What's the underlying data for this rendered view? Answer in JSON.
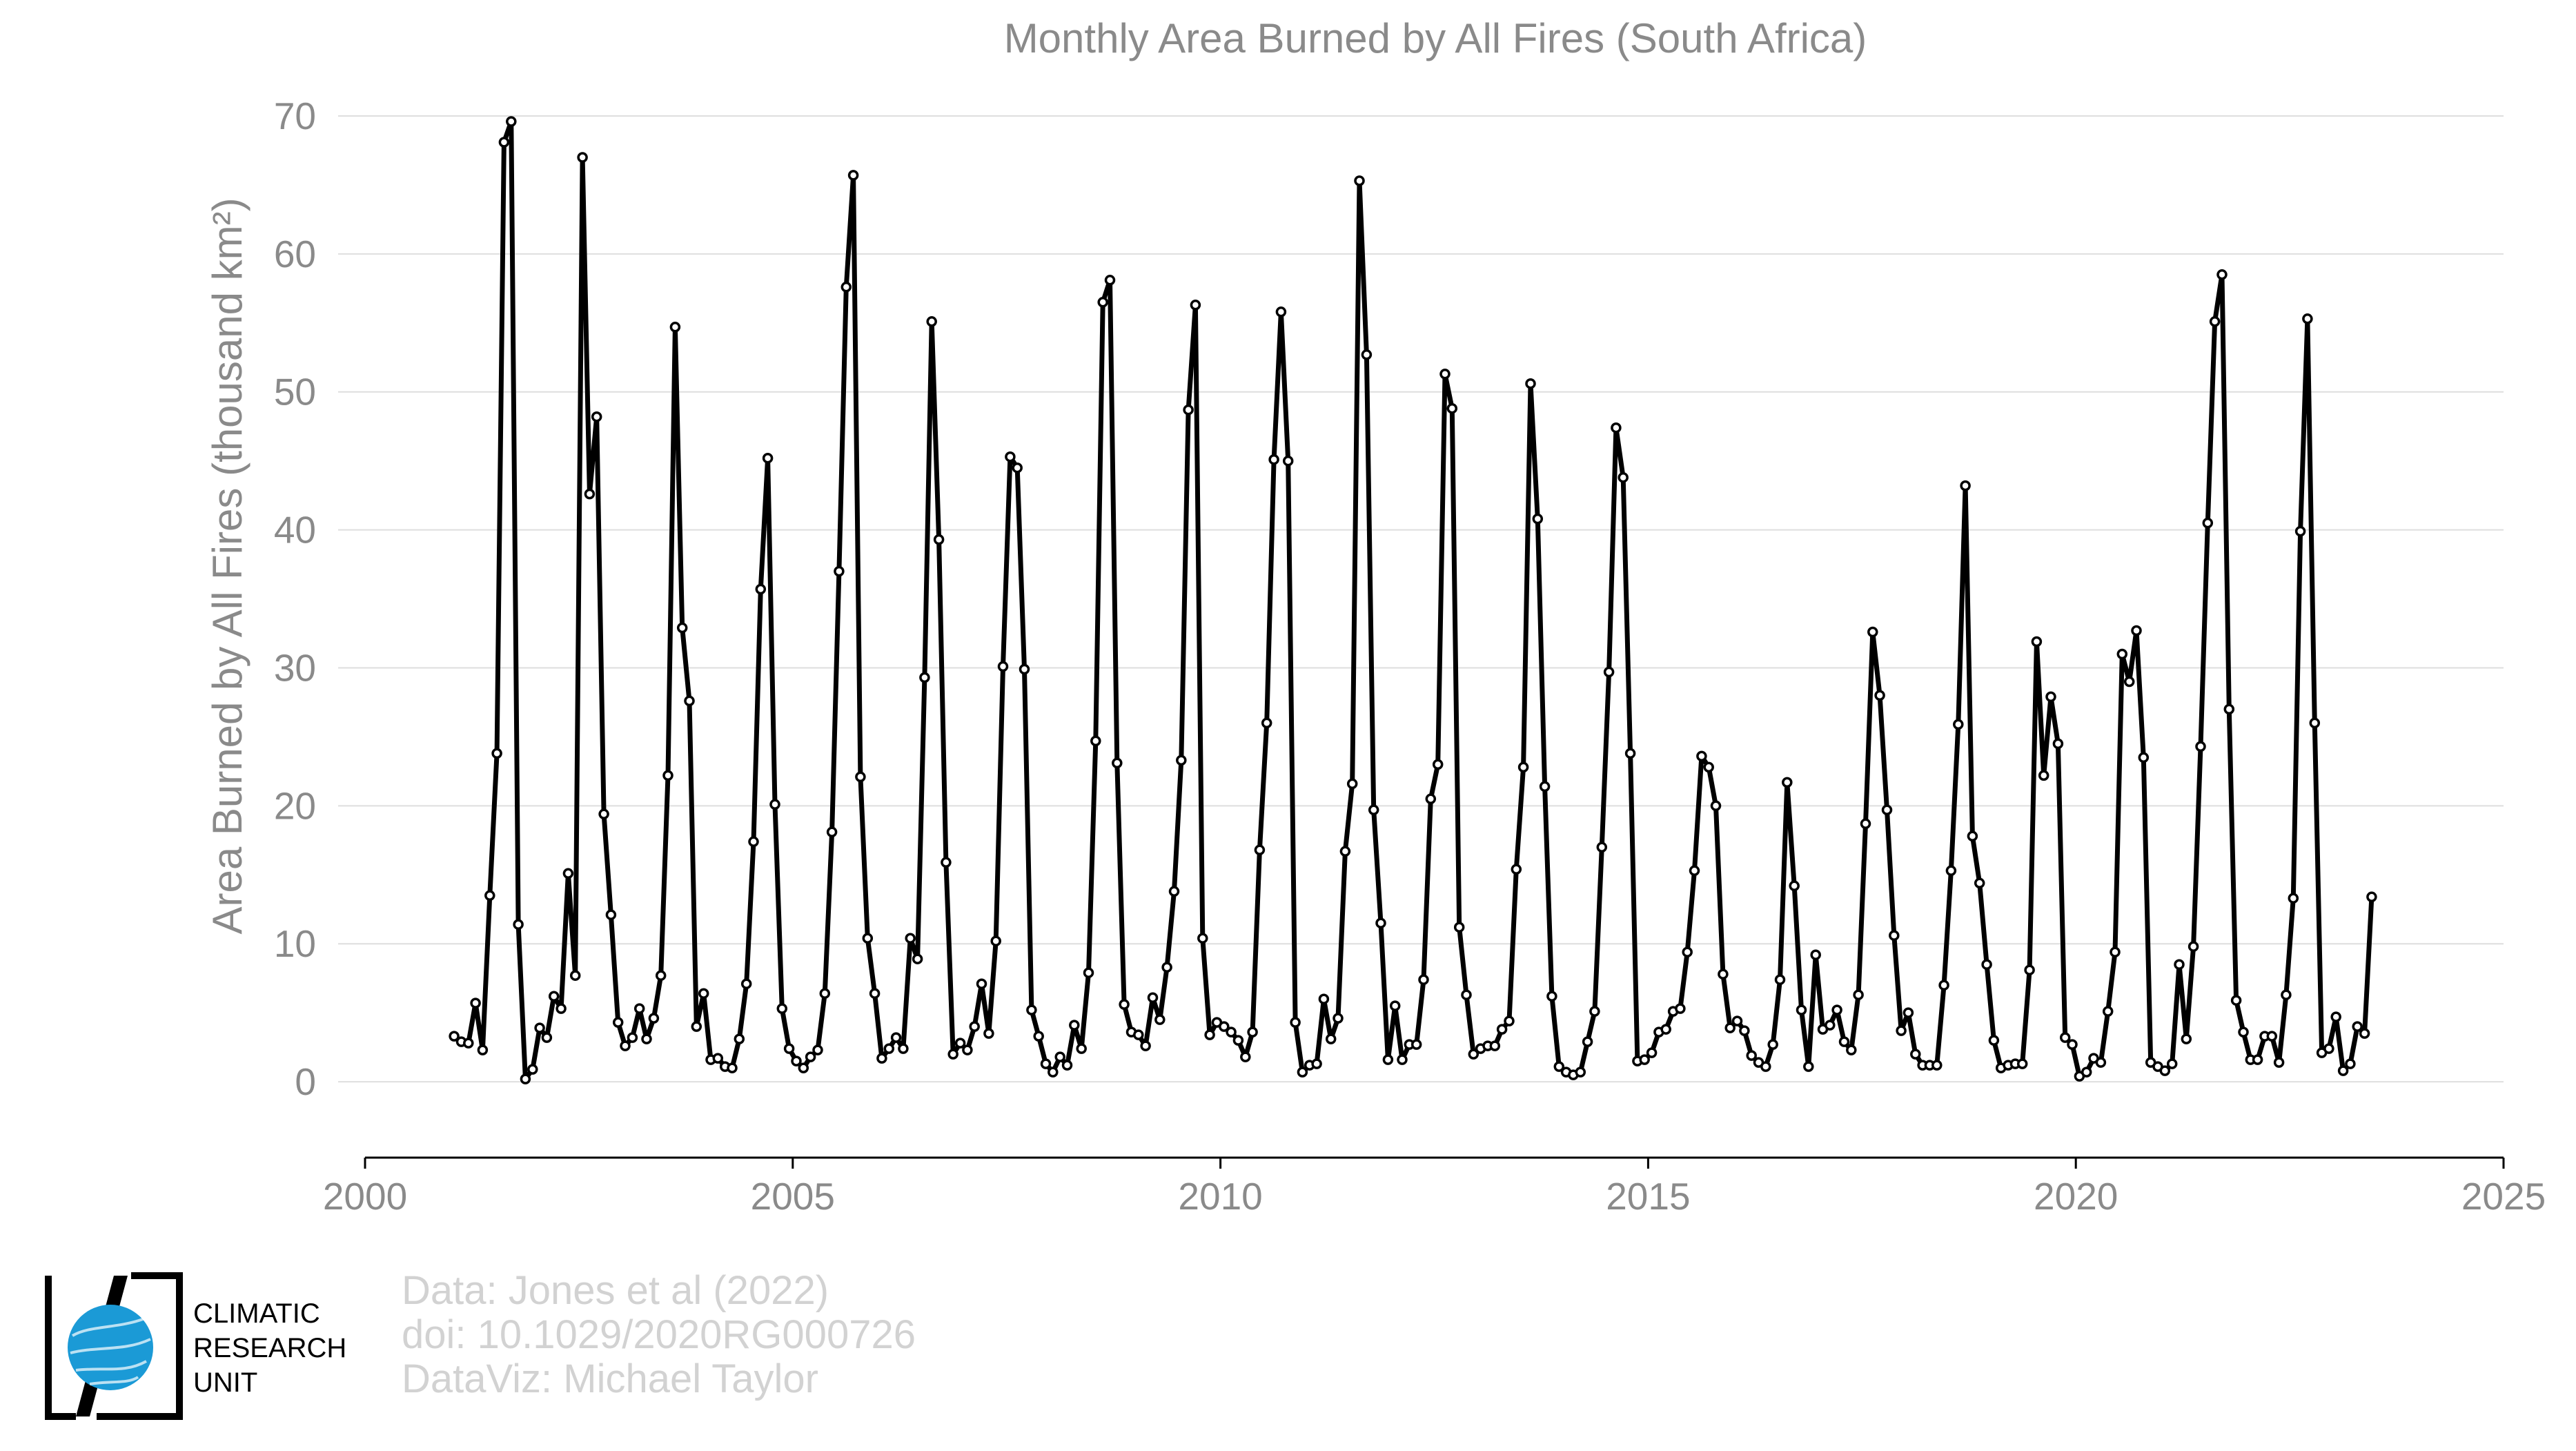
{
  "chart_data": {
    "type": "line",
    "title": "Monthly Area Burned by All Fires (South Africa)",
    "ylabel": "Area Burned by All Fires (thousand km²)",
    "xlabel": "",
    "xlim": [
      2000,
      2025
    ],
    "ylim": [
      -5.5,
      70
    ],
    "xticks": [
      "2000",
      "2005",
      "2010",
      "2015",
      "2020",
      "2025"
    ],
    "yticks": [
      "0",
      "10",
      "20",
      "30",
      "40",
      "50",
      "60",
      "70"
    ],
    "grid": "horizontal",
    "legend": "none",
    "series_color": "#000000",
    "start": "2001-01",
    "series": [
      {
        "values": [
          3.3,
          2.9,
          2.8,
          5.7,
          2.3,
          13.5,
          23.8,
          68.1,
          69.6,
          11.4,
          0.2,
          0.9,
          3.9,
          3.2,
          6.2,
          5.3,
          15.1,
          7.7,
          67.0,
          42.6,
          48.2,
          19.4,
          12.1,
          4.3,
          2.6,
          3.2,
          5.3,
          3.1,
          4.6,
          7.7,
          22.2,
          54.7,
          32.9,
          27.6,
          4.0,
          6.4,
          1.6,
          1.7,
          1.1,
          1.0,
          3.1,
          7.1,
          17.4,
          35.7,
          45.2,
          20.1,
          5.3,
          2.4,
          1.5,
          1.0,
          1.8,
          2.3,
          6.4,
          18.1,
          37.0,
          57.6,
          65.7,
          22.1,
          10.4,
          6.4,
          1.7,
          2.4,
          3.2,
          2.4,
          10.4,
          8.9,
          29.3,
          55.1,
          39.3,
          15.9,
          2.0,
          2.8,
          2.3,
          4.0,
          7.1,
          3.5,
          10.2,
          30.1,
          45.3,
          44.5,
          29.9,
          5.2,
          3.3,
          1.3,
          0.7,
          1.8,
          1.2,
          4.1,
          2.4,
          7.9,
          24.7,
          56.5,
          58.1,
          23.1,
          5.6,
          3.6,
          3.4,
          2.6,
          6.1,
          4.5,
          8.3,
          13.8,
          23.3,
          48.7,
          56.3,
          10.4,
          3.4,
          4.3,
          4.0,
          3.6,
          3.0,
          1.8,
          3.6,
          16.8,
          26.0,
          45.1,
          55.8,
          45.0,
          4.3,
          0.7,
          1.2,
          1.3,
          6.0,
          3.1,
          4.6,
          16.7,
          21.6,
          65.3,
          52.7,
          19.7,
          11.5,
          1.6,
          5.5,
          1.6,
          2.7,
          2.7,
          7.4,
          20.5,
          23.0,
          51.3,
          48.8,
          11.2,
          6.3,
          2.0,
          2.4,
          2.6,
          2.6,
          3.8,
          4.4,
          15.4,
          22.8,
          50.6,
          40.8,
          21.4,
          6.2,
          1.1,
          0.7,
          0.5,
          0.7,
          2.9,
          5.1,
          17.0,
          29.7,
          47.4,
          43.8,
          23.8,
          1.5,
          1.6,
          2.1,
          3.6,
          3.8,
          5.1,
          5.3,
          9.4,
          15.3,
          23.6,
          22.8,
          20.0,
          7.8,
          3.9,
          4.4,
          3.7,
          1.9,
          1.4,
          1.1,
          2.7,
          7.4,
          21.7,
          14.2,
          5.2,
          1.1,
          9.2,
          3.8,
          4.1,
          5.2,
          2.9,
          2.3,
          6.3,
          18.7,
          32.6,
          28.0,
          19.7,
          10.6,
          3.7,
          5.0,
          2.0,
          1.2,
          1.2,
          1.2,
          7.0,
          15.3,
          25.9,
          43.2,
          17.8,
          14.4,
          8.5,
          3.0,
          1.0,
          1.2,
          1.3,
          1.3,
          8.1,
          31.9,
          22.2,
          27.9,
          24.5,
          3.2,
          2.7,
          0.4,
          0.7,
          1.7,
          1.4,
          5.1,
          9.4,
          31.0,
          29.0,
          32.7,
          23.5,
          1.4,
          1.1,
          0.8,
          1.3,
          8.5,
          3.1,
          9.8,
          24.3,
          40.5,
          55.1,
          58.5,
          27.0,
          5.9,
          3.6,
          1.6,
          1.6,
          3.3,
          3.3,
          1.4,
          6.3,
          13.3,
          39.9,
          55.3,
          26.0,
          2.1,
          2.4,
          4.7,
          0.8,
          1.3,
          4.0,
          3.5,
          13.4
        ]
      }
    ]
  },
  "logo": {
    "label": "CLIMATIC RESEARCH UNIT",
    "lines": [
      "CLIMATIC",
      "RESEARCH",
      "UNIT"
    ]
  },
  "credits": {
    "line1": "Data: Jones et al (2022)",
    "line2": "doi: 10.1029/2020RG000726",
    "line3": "DataViz: Michael Taylor"
  }
}
